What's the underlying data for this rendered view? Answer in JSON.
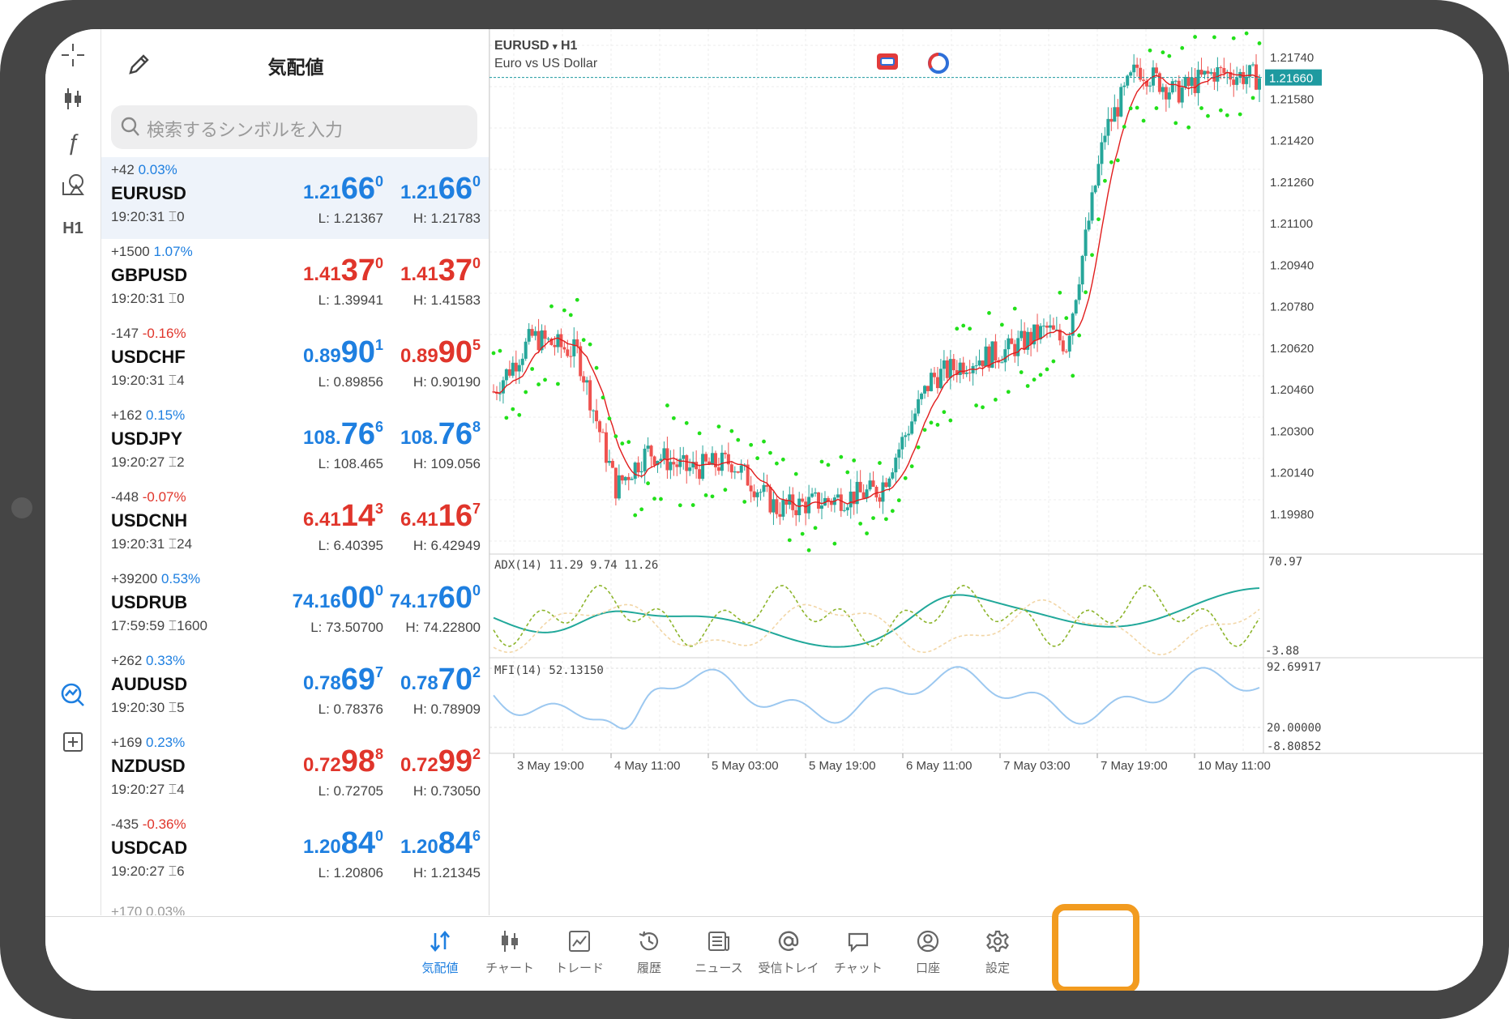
{
  "quotes_panel": {
    "title": "気配値",
    "search_placeholder": "検索するシンボルを入力",
    "rows": [
      {
        "change": "+42",
        "percent": "0.03%",
        "dir": "pos",
        "symbol": "EURUSD",
        "time": "19:20:31",
        "spread": "0",
        "bid_main": "1.21",
        "bid_big": "66",
        "bid_sup": "0",
        "ask_main": "1.21",
        "ask_big": "66",
        "ask_sup": "0",
        "bid_color": "up",
        "ask_color": "up",
        "low": "L: 1.21367",
        "high": "H: 1.21783",
        "selected": true
      },
      {
        "change": "+1500",
        "percent": "1.07%",
        "dir": "pos",
        "symbol": "GBPUSD",
        "time": "19:20:31",
        "spread": "0",
        "bid_main": "1.41",
        "bid_big": "37",
        "bid_sup": "0",
        "ask_main": "1.41",
        "ask_big": "37",
        "ask_sup": "0",
        "bid_color": "down",
        "ask_color": "down",
        "low": "L: 1.39941",
        "high": "H: 1.41583"
      },
      {
        "change": "-147",
        "percent": "-0.16%",
        "dir": "neg",
        "symbol": "USDCHF",
        "time": "19:20:31",
        "spread": "4",
        "bid_main": "0.89",
        "bid_big": "90",
        "bid_sup": "1",
        "ask_main": "0.89",
        "ask_big": "90",
        "ask_sup": "5",
        "bid_color": "up",
        "ask_color": "down",
        "low": "L: 0.89856",
        "high": "H: 0.90190"
      },
      {
        "change": "+162",
        "percent": "0.15%",
        "dir": "pos",
        "symbol": "USDJPY",
        "time": "19:20:27",
        "spread": "2",
        "bid_main": "108.",
        "bid_big": "76",
        "bid_sup": "6",
        "ask_main": "108.",
        "ask_big": "76",
        "ask_sup": "8",
        "bid_color": "up",
        "ask_color": "up",
        "low": "L: 108.465",
        "high": "H: 109.056"
      },
      {
        "change": "-448",
        "percent": "-0.07%",
        "dir": "neg",
        "symbol": "USDCNH",
        "time": "19:20:31",
        "spread": "24",
        "bid_main": "6.41",
        "bid_big": "14",
        "bid_sup": "3",
        "ask_main": "6.41",
        "ask_big": "16",
        "ask_sup": "7",
        "bid_color": "down",
        "ask_color": "down",
        "low": "L: 6.40395",
        "high": "H: 6.42949"
      },
      {
        "change": "+39200",
        "percent": "0.53%",
        "dir": "pos",
        "symbol": "USDRUB",
        "time": "17:59:59",
        "spread": "1600",
        "bid_main": "74.16",
        "bid_big": "00",
        "bid_sup": "0",
        "ask_main": "74.17",
        "ask_big": "60",
        "ask_sup": "0",
        "bid_color": "up",
        "ask_color": "up",
        "low": "L: 73.50700",
        "high": "H: 74.22800"
      },
      {
        "change": "+262",
        "percent": "0.33%",
        "dir": "pos",
        "symbol": "AUDUSD",
        "time": "19:20:30",
        "spread": "5",
        "bid_main": "0.78",
        "bid_big": "69",
        "bid_sup": "7",
        "ask_main": "0.78",
        "ask_big": "70",
        "ask_sup": "2",
        "bid_color": "up",
        "ask_color": "up",
        "low": "L: 0.78376",
        "high": "H: 0.78909"
      },
      {
        "change": "+169",
        "percent": "0.23%",
        "dir": "pos",
        "symbol": "NZDUSD",
        "time": "19:20:27",
        "spread": "4",
        "bid_main": "0.72",
        "bid_big": "98",
        "bid_sup": "8",
        "ask_main": "0.72",
        "ask_big": "99",
        "ask_sup": "2",
        "bid_color": "down",
        "ask_color": "down",
        "low": "L: 0.72705",
        "high": "H: 0.73050"
      },
      {
        "change": "-435",
        "percent": "-0.36%",
        "dir": "neg",
        "symbol": "USDCAD",
        "time": "19:20:27",
        "spread": "6",
        "bid_main": "1.20",
        "bid_big": "84",
        "bid_sup": "0",
        "ask_main": "1.20",
        "ask_big": "84",
        "ask_sup": "6",
        "bid_color": "up",
        "ask_color": "up",
        "low": "L: 1.20806",
        "high": "H: 1.21345"
      }
    ],
    "partial_next_row": "+170 0.03%"
  },
  "toolstrip": {
    "items": [
      "crosshair-icon",
      "candles-icon",
      "function-icon",
      "objects-icon",
      "H1",
      "trend-icon",
      "add-icon"
    ]
  },
  "chart": {
    "symbol": "EURUSD",
    "timeframe": "H1",
    "description": "Euro vs US Dollar",
    "current_price": "1.21660",
    "price_axis": [
      "1.21740",
      "1.21580",
      "1.21420",
      "1.21260",
      "1.21100",
      "1.20940",
      "1.20780",
      "1.20620",
      "1.20460",
      "1.20300",
      "1.20140",
      "1.19980"
    ],
    "adx_label": "ADX(14) 11.29 9.74 11.26",
    "adx_axis_top": "70.97",
    "adx_axis_bottom": "-3.88",
    "mfi_label": "MFI(14) 52.13150",
    "mfi_axis_top": "92.69917",
    "mfi_axis_mid": "20.00000",
    "mfi_axis_bottom": "-8.80852",
    "time_axis": [
      "3 May 19:00",
      "4 May 11:00",
      "5 May 03:00",
      "5 May 19:00",
      "6 May 11:00",
      "7 May 03:00",
      "7 May 19:00",
      "10 May 11:00"
    ],
    "colors": {
      "bull": "#26a69a",
      "bear": "#ef5350",
      "ma": "#e11d1d",
      "sar": "#22e01a",
      "adx": "#21a89a",
      "plus_di": "#8db52c",
      "minus_di": "#f2d6a6",
      "mfi": "#9cc8f0",
      "price_line": "#1e9aa0"
    }
  },
  "tabbar": {
    "tabs": [
      {
        "label": "気配値",
        "icon": "quotes-icon",
        "active": true
      },
      {
        "label": "チャート",
        "icon": "chart-icon"
      },
      {
        "label": "トレード",
        "icon": "trade-icon"
      },
      {
        "label": "履歴",
        "icon": "history-icon"
      },
      {
        "label": "ニュース",
        "icon": "news-icon"
      },
      {
        "label": "受信トレイ",
        "icon": "mail-icon"
      },
      {
        "label": "チャット",
        "icon": "chat-icon"
      },
      {
        "label": "口座",
        "icon": "account-icon"
      },
      {
        "label": "設定",
        "icon": "settings-icon",
        "highlighted": true
      }
    ]
  }
}
